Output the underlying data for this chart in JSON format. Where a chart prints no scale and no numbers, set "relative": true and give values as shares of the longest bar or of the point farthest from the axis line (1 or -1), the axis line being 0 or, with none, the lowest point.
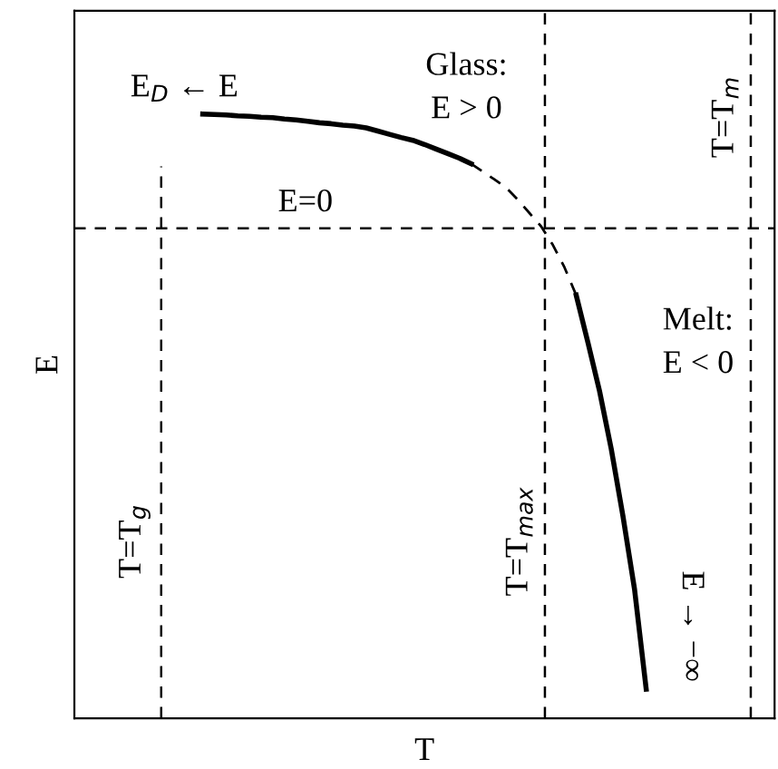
{
  "chart_data": {
    "type": "line",
    "relative": true,
    "xlabel": "T",
    "ylabel": "E",
    "ylim": [
      -1.063,
      0.472
    ],
    "marker": "none",
    "categories": [
      null,
      null,
      null,
      null,
      null,
      null,
      null,
      null,
      null,
      null,
      null,
      null,
      null,
      null,
      null,
      null,
      null,
      null,
      null,
      null,
      null,
      null,
      null,
      null,
      null,
      null,
      null,
      null,
      null,
      null,
      null,
      null,
      null,
      null,
      null,
      null,
      null,
      null,
      null,
      null,
      null,
      null,
      null,
      null,
      null,
      null,
      null,
      null,
      null,
      null,
      null,
      null,
      null,
      null,
      null,
      null,
      null,
      null,
      null,
      null,
      null
    ],
    "series": [
      {
        "color": "#000000",
        "line_style": "solid",
        "values": [
          null,
          null,
          null,
          null,
          null,
          null,
          null,
          null,
          null,
          null,
          null,
          0.248,
          0.247,
          0.246,
          0.244,
          0.243,
          0.241,
          0.24,
          0.237,
          0.235,
          0.232,
          0.229,
          0.227,
          0.224,
          0.222,
          0.218,
          0.211,
          0.204,
          0.197,
          0.191,
          0.182,
          0.172,
          0.162,
          0.152,
          0.14,
          null,
          null,
          null,
          null,
          null,
          null,
          null,
          null,
          null,
          null,
          null,
          null,
          null,
          null,
          null,
          null,
          null,
          null,
          null,
          null,
          null,
          null,
          null,
          null,
          null,
          null
        ]
      },
      {
        "color": "#000000",
        "line_style": "dashed",
        "values": [
          null,
          null,
          null,
          null,
          null,
          null,
          null,
          null,
          null,
          null,
          null,
          null,
          null,
          null,
          null,
          null,
          null,
          null,
          null,
          null,
          null,
          null,
          null,
          null,
          null,
          null,
          null,
          null,
          null,
          null,
          null,
          null,
          null,
          null,
          0.14,
          0.123,
          0.106,
          0.088,
          0.062,
          0.033,
          0.004,
          -0.036,
          -0.085,
          -0.145,
          null,
          null,
          null,
          null,
          null,
          null,
          null,
          null,
          null,
          null,
          null,
          null,
          null,
          null,
          null,
          null,
          null
        ]
      },
      {
        "color": "#000000",
        "line_style": "solid",
        "values": [
          null,
          null,
          null,
          null,
          null,
          null,
          null,
          null,
          null,
          null,
          null,
          null,
          null,
          null,
          null,
          null,
          null,
          null,
          null,
          null,
          null,
          null,
          null,
          null,
          null,
          null,
          null,
          null,
          null,
          null,
          null,
          null,
          null,
          null,
          null,
          null,
          null,
          null,
          null,
          null,
          null,
          null,
          null,
          -0.145,
          -0.247,
          -0.353,
          -0.478,
          -0.623,
          -0.783,
          -1,
          null,
          null,
          null,
          null,
          null,
          null,
          null,
          null,
          null,
          null,
          null
        ]
      }
    ],
    "ref_lines": [
      {
        "axis": "y",
        "value": 0,
        "label": "E=0",
        "line_style": "dashed",
        "color": "#000000"
      }
    ],
    "annotations": [
      "E$_{D}$ ← E",
      "Glass:\nE > 0",
      "Melt:\nE < 0",
      "E → −∞",
      "T=T$_{g}$",
      "T=T$_{max}$",
      "T=T$_{m}$"
    ]
  }
}
